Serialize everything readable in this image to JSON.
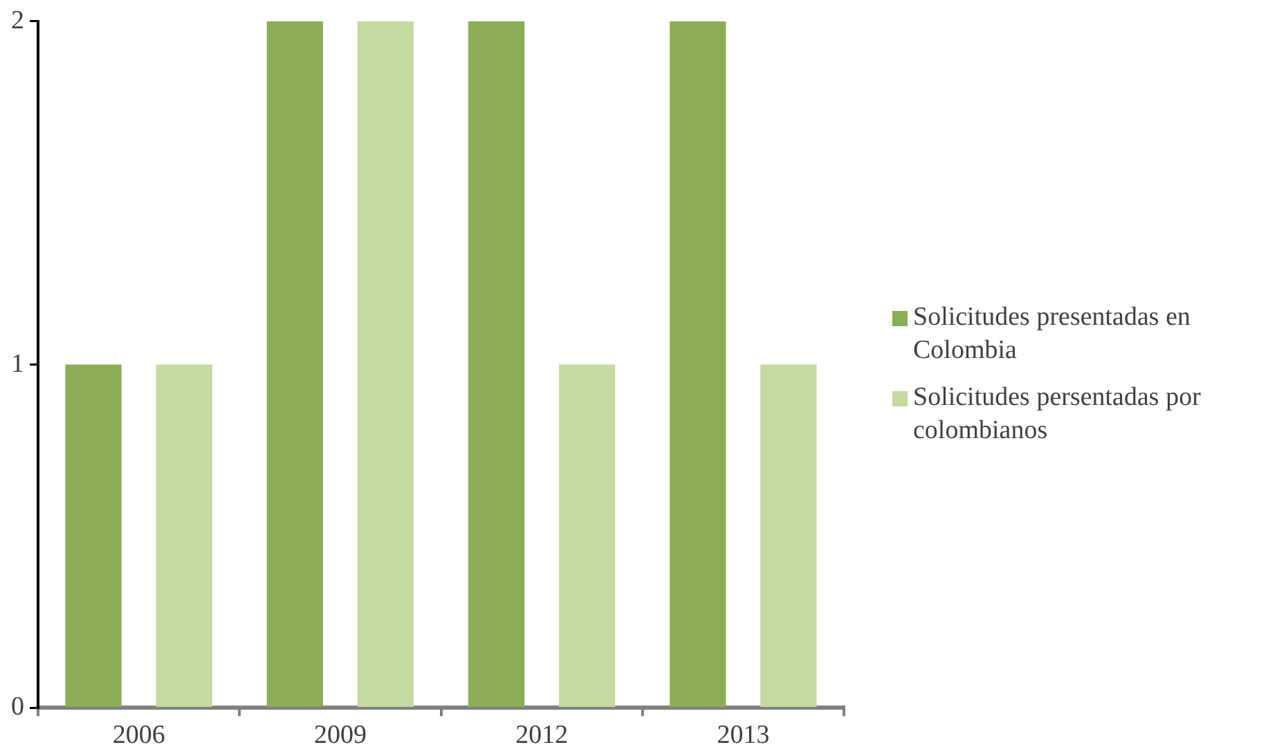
{
  "chart_data": {
    "type": "bar",
    "categories": [
      "2006",
      "2009",
      "2012",
      "2013"
    ],
    "series": [
      {
        "name": "Solicitudes presentadas en Colombia",
        "color": "#8aad55",
        "values": [
          1,
          2,
          2,
          2
        ]
      },
      {
        "name": "Solicitudes persentadas por colombianos",
        "color": "#c5d9a2",
        "values": [
          1,
          2,
          1,
          1
        ]
      }
    ],
    "ylim": [
      0,
      2
    ],
    "yticks": [
      0,
      1,
      2
    ],
    "grid": false,
    "legend": "right"
  }
}
